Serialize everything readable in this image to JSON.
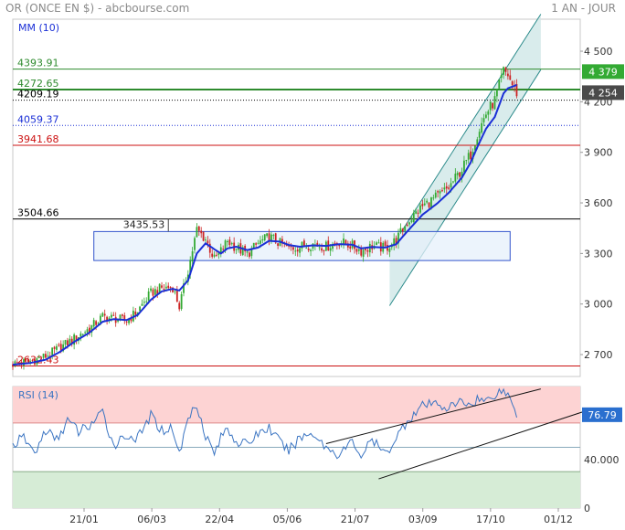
{
  "header": {
    "title": "OR (ONCE EN $) - abcbourse.com",
    "period": "1 AN - JOUR"
  },
  "colors": {
    "up": "#33aa33",
    "down": "#cc2222",
    "ma": "#1a2fd6",
    "rsi": "#3a74c2",
    "resistance": "#2e8b2e",
    "support": "#cc1111",
    "box_fill": "#e6f0fb",
    "box_edge": "#3355cc",
    "channel_fill": "#cfe7e7",
    "channel_edge": "#2a8a8a",
    "overbought": "#fdd3d3",
    "oversold": "#d6ecd6"
  },
  "chart_data": [
    {
      "type": "candlestick",
      "legend": "MM (10)",
      "x_ticks": [
        "21/01",
        "06/03",
        "22/04",
        "05/06",
        "21/07",
        "03/09",
        "17/10",
        "01/12"
      ],
      "y_ticks": [
        2700,
        3000,
        3300,
        3600,
        3900,
        4200,
        4500
      ],
      "y_tick_labels": [
        "2 700",
        "3 000",
        "3 300",
        "3 600",
        "3 900",
        "4 200",
        "4 500"
      ],
      "ylim": [
        2570,
        4690
      ],
      "n_sessions": 260,
      "last_session": 230,
      "level_lines": [
        {
          "value": 4393.91,
          "label": "4393.91",
          "color": "resistance",
          "style": "solid"
        },
        {
          "value": 4272.65,
          "label": "4272.65",
          "color": "resistance",
          "style": "thick"
        },
        {
          "value": 4209.19,
          "label": "4209.19",
          "color": "black",
          "style": "dotted"
        },
        {
          "value": 4059.37,
          "label": "4059.37",
          "color": "ma",
          "style": "dotted"
        },
        {
          "value": 3941.68,
          "label": "3941.68",
          "color": "support",
          "style": "solid"
        },
        {
          "value": 3504.66,
          "label": "3504.66",
          "color": "black",
          "style": "solid"
        },
        {
          "value": 2632.43,
          "label": "2632.43",
          "color": "support",
          "style": "solid"
        }
      ],
      "range_box": {
        "x_from": 37,
        "x_to": 227,
        "y_from": 3258,
        "y_to": 3430,
        "peak_label": "3435.53"
      },
      "channel": {
        "lower": [
          {
            "x": 172,
            "y": 2990
          },
          {
            "x": 241,
            "y": 4390
          }
        ],
        "upper": [
          {
            "x": 172,
            "y": 3320
          },
          {
            "x": 241,
            "y": 4720
          }
        ]
      },
      "price_tags": [
        {
          "value": 4379,
          "label": "4 379",
          "style": "green"
        },
        {
          "value": 4254,
          "label": "4 254",
          "style": "dark"
        }
      ],
      "price_path": [
        [
          0,
          2645
        ],
        [
          8,
          2660
        ],
        [
          15,
          2690
        ],
        [
          22,
          2745
        ],
        [
          28,
          2795
        ],
        [
          35,
          2855
        ],
        [
          41,
          2925
        ],
        [
          46,
          2915
        ],
        [
          52,
          2900
        ],
        [
          57,
          2960
        ],
        [
          63,
          3065
        ],
        [
          68,
          3095
        ],
        [
          73,
          3100
        ],
        [
          76,
          2985
        ],
        [
          80,
          3200
        ],
        [
          84,
          3440
        ],
        [
          88,
          3385
        ],
        [
          92,
          3265
        ],
        [
          95,
          3315
        ],
        [
          98,
          3375
        ],
        [
          102,
          3335
        ],
        [
          107,
          3295
        ],
        [
          112,
          3360
        ],
        [
          117,
          3400
        ],
        [
          122,
          3360
        ],
        [
          126,
          3330
        ],
        [
          131,
          3340
        ],
        [
          137,
          3355
        ],
        [
          143,
          3340
        ],
        [
          149,
          3370
        ],
        [
          155,
          3345
        ],
        [
          159,
          3315
        ],
        [
          164,
          3345
        ],
        [
          170,
          3330
        ],
        [
          175,
          3380
        ],
        [
          180,
          3485
        ],
        [
          187,
          3580
        ],
        [
          194,
          3640
        ],
        [
          199,
          3690
        ],
        [
          205,
          3800
        ],
        [
          209,
          3890
        ],
        [
          212,
          4010
        ],
        [
          216,
          4130
        ],
        [
          220,
          4210
        ],
        [
          224,
          4380
        ],
        [
          226,
          4360
        ],
        [
          228,
          4300
        ],
        [
          230,
          4254
        ]
      ],
      "ma_path": [
        [
          0,
          2640
        ],
        [
          8,
          2650
        ],
        [
          15,
          2670
        ],
        [
          22,
          2720
        ],
        [
          28,
          2775
        ],
        [
          35,
          2830
        ],
        [
          41,
          2895
        ],
        [
          46,
          2910
        ],
        [
          52,
          2905
        ],
        [
          57,
          2935
        ],
        [
          63,
          3025
        ],
        [
          68,
          3075
        ],
        [
          73,
          3090
        ],
        [
          76,
          3080
        ],
        [
          80,
          3140
        ],
        [
          84,
          3300
        ],
        [
          88,
          3360
        ],
        [
          92,
          3325
        ],
        [
          95,
          3300
        ],
        [
          98,
          3330
        ],
        [
          102,
          3340
        ],
        [
          107,
          3320
        ],
        [
          112,
          3335
        ],
        [
          117,
          3375
        ],
        [
          122,
          3370
        ],
        [
          126,
          3350
        ],
        [
          131,
          3340
        ],
        [
          137,
          3348
        ],
        [
          143,
          3345
        ],
        [
          149,
          3355
        ],
        [
          155,
          3352
        ],
        [
          159,
          3330
        ],
        [
          164,
          3338
        ],
        [
          170,
          3335
        ],
        [
          175,
          3355
        ],
        [
          180,
          3430
        ],
        [
          187,
          3530
        ],
        [
          194,
          3600
        ],
        [
          199,
          3660
        ],
        [
          205,
          3750
        ],
        [
          209,
          3840
        ],
        [
          212,
          3930
        ],
        [
          216,
          4040
        ],
        [
          220,
          4110
        ],
        [
          224,
          4250
        ],
        [
          226,
          4280
        ],
        [
          228,
          4290
        ],
        [
          230,
          4300
        ]
      ]
    },
    {
      "type": "line",
      "legend": "RSI (14)",
      "ylim": [
        0,
        100
      ],
      "y_ticks": [
        40,
        0
      ],
      "y_tick_labels": [
        "40.000",
        "0"
      ],
      "zones": {
        "overbought": 70,
        "neutral": 50,
        "oversold": 30
      },
      "last_value": 76.79,
      "last_label": "76.79",
      "trend_lines": [
        [
          {
            "x": 143,
            "y": 53
          },
          {
            "x": 241,
            "y": 98
          }
        ],
        [
          {
            "x": 167,
            "y": 24
          },
          {
            "x": 265,
            "y": 82
          }
        ]
      ],
      "rsi_path": [
        [
          0,
          52
        ],
        [
          5,
          58
        ],
        [
          10,
          45
        ],
        [
          15,
          64
        ],
        [
          20,
          56
        ],
        [
          25,
          72
        ],
        [
          30,
          63
        ],
        [
          35,
          68
        ],
        [
          41,
          78
        ],
        [
          46,
          52
        ],
        [
          52,
          60
        ],
        [
          57,
          57
        ],
        [
          63,
          76
        ],
        [
          68,
          64
        ],
        [
          73,
          66
        ],
        [
          76,
          44
        ],
        [
          80,
          74
        ],
        [
          84,
          86
        ],
        [
          88,
          60
        ],
        [
          92,
          45
        ],
        [
          95,
          58
        ],
        [
          98,
          66
        ],
        [
          102,
          55
        ],
        [
          107,
          52
        ],
        [
          112,
          62
        ],
        [
          117,
          66
        ],
        [
          122,
          54
        ],
        [
          126,
          47
        ],
        [
          131,
          58
        ],
        [
          137,
          62
        ],
        [
          143,
          50
        ],
        [
          149,
          44
        ],
        [
          155,
          55
        ],
        [
          159,
          43
        ],
        [
          164,
          56
        ],
        [
          170,
          44
        ],
        [
          175,
          58
        ],
        [
          180,
          72
        ],
        [
          187,
          84
        ],
        [
          194,
          86
        ],
        [
          199,
          82
        ],
        [
          205,
          88
        ],
        [
          209,
          85
        ],
        [
          212,
          90
        ],
        [
          216,
          88
        ],
        [
          220,
          94
        ],
        [
          224,
          97
        ],
        [
          226,
          93
        ],
        [
          228,
          86
        ],
        [
          230,
          77
        ]
      ]
    }
  ]
}
